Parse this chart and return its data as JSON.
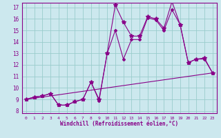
{
  "xlabel": "Windchill (Refroidissement éolien,°C)",
  "xlim": [
    -0.5,
    23.5
  ],
  "ylim": [
    7.8,
    17.4
  ],
  "yticks": [
    8,
    9,
    10,
    11,
    12,
    13,
    14,
    15,
    16,
    17
  ],
  "xticks": [
    0,
    1,
    2,
    3,
    4,
    5,
    6,
    7,
    8,
    9,
    10,
    11,
    12,
    13,
    14,
    15,
    16,
    17,
    18,
    19,
    20,
    21,
    22,
    23
  ],
  "bg_color": "#cce8ee",
  "line_color": "#880088",
  "grid_color": "#99cccc",
  "line1_x": [
    0,
    1,
    2,
    3,
    4,
    5,
    6,
    7,
    8,
    9,
    10,
    11,
    12,
    13,
    14,
    15,
    16,
    17,
    18,
    19,
    20,
    21,
    22,
    23
  ],
  "line1_y": [
    9.0,
    9.2,
    9.3,
    9.5,
    8.5,
    8.5,
    8.8,
    9.0,
    10.5,
    9.0,
    13.0,
    17.2,
    15.7,
    14.5,
    14.5,
    16.2,
    16.0,
    15.2,
    17.5,
    15.5,
    12.2,
    12.5,
    12.6,
    11.3
  ],
  "line2_x": [
    0,
    1,
    2,
    3,
    4,
    5,
    6,
    7,
    8,
    9,
    10,
    11,
    12,
    13,
    14,
    15,
    16,
    17,
    18,
    19,
    20,
    21,
    22,
    23
  ],
  "line2_y": [
    9.0,
    9.2,
    9.3,
    9.5,
    8.5,
    8.5,
    8.8,
    9.0,
    10.5,
    8.9,
    13.0,
    15.0,
    12.5,
    14.2,
    14.2,
    16.1,
    15.9,
    15.0,
    16.8,
    15.5,
    12.2,
    12.5,
    12.5,
    11.3
  ],
  "line3_x": [
    0,
    23
  ],
  "line3_y": [
    9.0,
    11.3
  ]
}
